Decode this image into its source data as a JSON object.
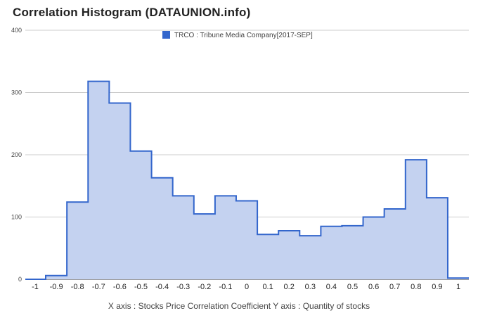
{
  "title": "Correlation Histogram (DATAUNION.info)",
  "axis_caption": "X axis : Stocks Price Correlation Coefficient  Y axis : Quantity of stocks",
  "colors": {
    "line": "#3366cc",
    "fill": "#c4d2f0",
    "grid": "#cccccc",
    "legend_swatch": "#3366cc"
  },
  "chart_data": {
    "type": "area",
    "step": true,
    "x": [
      -1,
      -0.9,
      -0.8,
      -0.7,
      -0.6,
      -0.5,
      -0.4,
      -0.3,
      -0.2,
      -0.1,
      0,
      0.1,
      0.2,
      0.3,
      0.4,
      0.5,
      0.6,
      0.7,
      0.8,
      0.9,
      1
    ],
    "series": [
      {
        "name": "TRCO : Tribune Media Company[2017-SEP]",
        "values": [
          0,
          6,
          124,
          318,
          283,
          206,
          163,
          134,
          105,
          134,
          126,
          72,
          78,
          70,
          85,
          86,
          100,
          113,
          192,
          131,
          2
        ]
      }
    ],
    "xticks": [
      "-1",
      "-0.9",
      "-0.8",
      "-0.7",
      "-0.6",
      "-0.5",
      "-0.4",
      "-0.3",
      "-0.2",
      "-0.1",
      "0",
      "0.1",
      "0.2",
      "0.3",
      "0.4",
      "0.5",
      "0.6",
      "0.7",
      "0.8",
      "0.9",
      "1"
    ],
    "yticks": [
      "0",
      "100",
      "200",
      "300",
      "400"
    ],
    "ylim": [
      0,
      400
    ],
    "xlim": [
      -1,
      1
    ],
    "grid": true,
    "legend_position": "top-center"
  }
}
